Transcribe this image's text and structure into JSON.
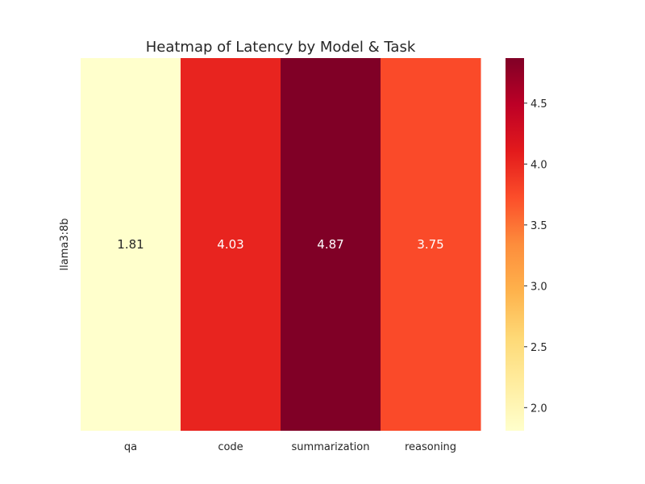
{
  "chart_data": {
    "type": "heatmap",
    "title": "Heatmap of Latency by Model & Task",
    "xlabel": "",
    "ylabel": "",
    "rows": [
      "llama3:8b"
    ],
    "columns": [
      "qa",
      "code",
      "summarization",
      "reasoning"
    ],
    "values": [
      [
        1.81,
        4.03,
        4.87,
        3.75
      ]
    ],
    "value_labels": [
      [
        "1.81",
        "4.03",
        "4.87",
        "3.75"
      ]
    ],
    "colormap": "YlOrRd",
    "colorbar": {
      "min": 1.81,
      "max": 4.87,
      "ticks": [
        2.0,
        2.5,
        3.0,
        3.5,
        4.0,
        4.5
      ],
      "tick_labels": [
        "2.0",
        "2.5",
        "3.0",
        "3.5",
        "4.0",
        "4.5"
      ]
    },
    "grid": false,
    "legend": "colorbar-right"
  }
}
